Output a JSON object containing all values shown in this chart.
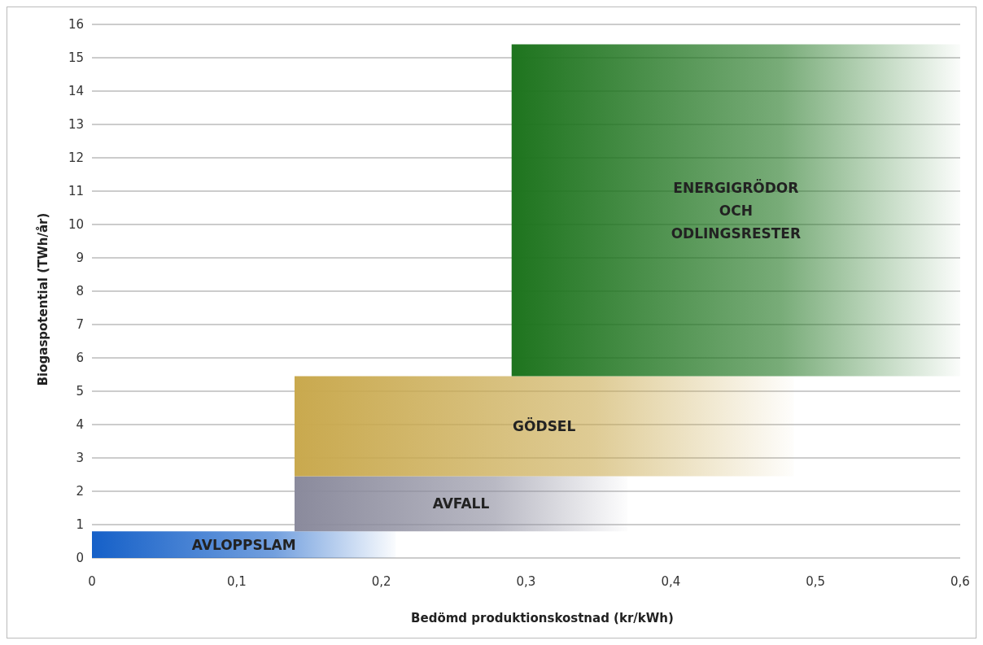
{
  "chart_data": {
    "type": "area",
    "stacked": true,
    "xlabel": "Bedömd produktionskostnad (kr/kWh)",
    "ylabel": "Biogaspotential (TWh/år)",
    "xlim": [
      0,
      0.6
    ],
    "xticks": [
      {
        "value": 0,
        "label": "0"
      },
      {
        "value": 0.1,
        "label": "0,1"
      },
      {
        "value": 0.2,
        "label": "0,2"
      },
      {
        "value": 0.3,
        "label": "0,3"
      },
      {
        "value": 0.4,
        "label": "0,4"
      },
      {
        "value": 0.5,
        "label": "0,5"
      },
      {
        "value": 0.6,
        "label": "0,6"
      }
    ],
    "ylim": [
      0,
      16
    ],
    "yticks": [
      0,
      1,
      2,
      3,
      4,
      5,
      6,
      7,
      8,
      9,
      10,
      11,
      12,
      13,
      14,
      15,
      16
    ],
    "grid": "y",
    "series": [
      {
        "name": "AVLOPPSLAM",
        "color": "#1560c8",
        "x": [
          0,
          0.21
        ],
        "values": [
          0.8,
          0.8
        ]
      },
      {
        "name": "AVFALL",
        "color": "#8a8a9c",
        "x": [
          0.14,
          0.37
        ],
        "values": [
          1.65,
          1.65
        ]
      },
      {
        "name": "GÖDSEL",
        "color": "#c9a94e",
        "x": [
          0.14,
          0.485
        ],
        "values": [
          3,
          3
        ]
      },
      {
        "name": "ENERGIGRÖDOR OCH ODLINGSRESTER",
        "color": "#1e741e",
        "x": [
          0.29,
          0.6
        ],
        "values": [
          9.95,
          9.95
        ]
      }
    ]
  }
}
